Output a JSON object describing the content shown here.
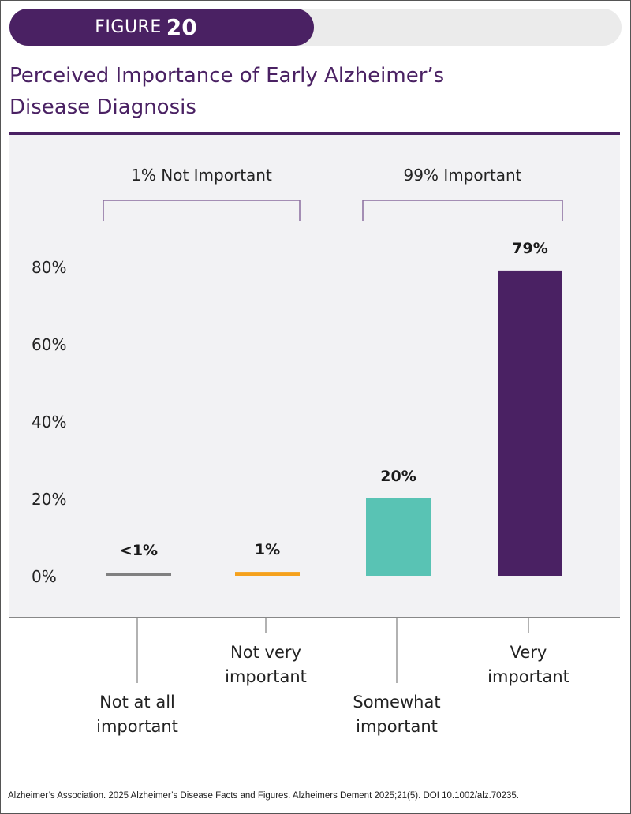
{
  "figure": {
    "label": "FIGURE",
    "number": "20"
  },
  "title_lines": [
    "Perceived Importance of Early Alzheimer’s",
    "Disease Diagnosis"
  ],
  "groups": [
    {
      "label": "1% Not Important",
      "from": 0,
      "to": 1
    },
    {
      "label": "99% Important",
      "from": 2,
      "to": 3
    }
  ],
  "colors": {
    "brand": "#4a2163",
    "panel": "#f2f2f4",
    "gray": "#808080",
    "orange": "#f5a11c",
    "teal": "#59c3b4",
    "purple": "#4a2163"
  },
  "chart_data": {
    "type": "bar",
    "title": "Perceived Importance of Early Alzheimer’s Disease Diagnosis",
    "xlabel": "",
    "ylabel": "",
    "ylim": [
      0,
      80
    ],
    "yticks": [
      0,
      20,
      40,
      60,
      80
    ],
    "ytick_labels": [
      "0%",
      "20%",
      "40%",
      "60%",
      "80%"
    ],
    "grid": false,
    "categories": [
      [
        "Not at all",
        "important"
      ],
      [
        "Not very",
        "important"
      ],
      [
        "Somewhat",
        "important"
      ],
      [
        "Very",
        "important"
      ]
    ],
    "values": [
      0.5,
      1,
      20,
      79
    ],
    "data_labels": [
      "<1%",
      "1%",
      "20%",
      "79%"
    ],
    "bar_colors": [
      "#808080",
      "#f5a11c",
      "#59c3b4",
      "#4a2163"
    ],
    "label_offsets": [
      "low",
      "high",
      "low",
      "high"
    ]
  },
  "footer": "Alzheimer’s Association. 2025 Alzheimer’s Disease Facts and Figures. Alzheimers Dement 2025;21(5). DOI 10.1002/alz.70235."
}
